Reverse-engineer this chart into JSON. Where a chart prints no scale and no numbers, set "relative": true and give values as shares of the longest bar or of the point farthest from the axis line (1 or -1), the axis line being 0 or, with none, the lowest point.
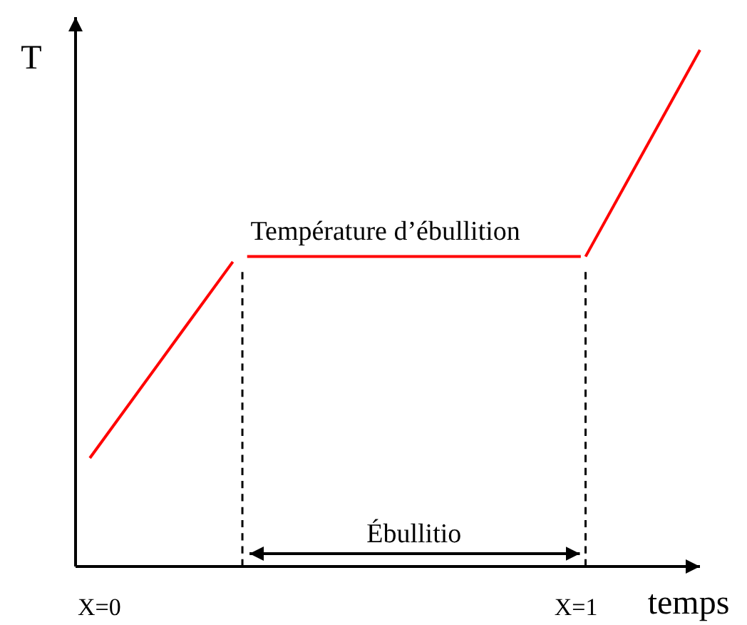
{
  "chart_data": {
    "type": "line",
    "relative": true,
    "xlabel": "temps",
    "ylabel": "T",
    "xlim": [
      -0.05,
      1.26
    ],
    "xticks": [
      {
        "value": 0,
        "label": "X=0"
      },
      {
        "value": 1,
        "label": "X=1"
      }
    ],
    "grid": false,
    "series": [
      {
        "color": "#ff0000",
        "x": [
          -0.02,
          0.28
        ],
        "values": [
          0.21,
          0.59
        ]
      },
      {
        "color": "#ff0000",
        "x": [
          0.31,
          1.01
        ],
        "values": [
          0.6,
          0.6
        ]
      },
      {
        "color": "#ff0000",
        "x": [
          1.02,
          1.26
        ],
        "values": [
          0.6,
          1
        ]
      },
      {
        "color": "#000000",
        "x": [
          0.3,
          0.3
        ],
        "values": [
          0,
          0.57
        ],
        "line_style": "dashed"
      },
      {
        "color": "#000000",
        "x": [
          1.02,
          1.02
        ],
        "values": [
          0,
          0.57
        ],
        "line_style": "dashed"
      }
    ],
    "annotations": [
      {
        "text": "Température d’ébullition",
        "x": 0.6,
        "y": 0.6
      },
      "Ébullitio"
    ]
  }
}
